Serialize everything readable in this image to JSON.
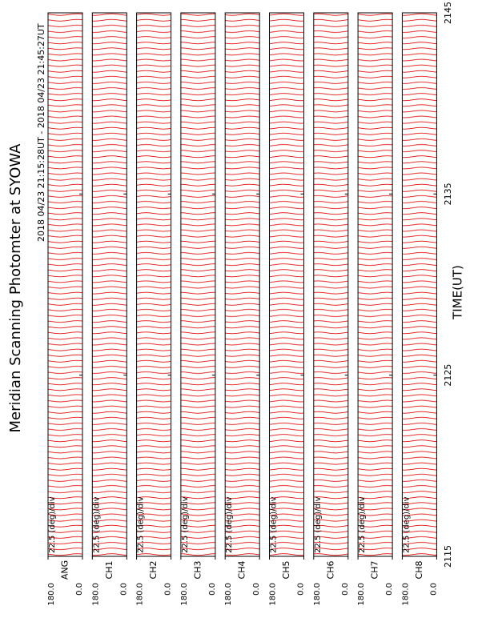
{
  "chart_data": {
    "type": "line",
    "title": "Meridian Scanning Photomter at SYOWA",
    "subtitle": "2018 04/23 21:15:28UT - 2018 04/23 21:45:27UT",
    "x_label": "TIME(UT)",
    "xlim": [
      2115,
      2145
    ],
    "xticks": [
      2115,
      2125,
      2135,
      2145
    ],
    "ylim": [
      0,
      180
    ],
    "yticks": [
      {
        "value": 0,
        "label": "0.0"
      },
      {
        "value": 180,
        "label": "180.0"
      }
    ],
    "color": "#e00000",
    "panels": [
      {
        "name": "ANG",
        "scale": "22.5 (deg)/div"
      },
      {
        "name": "CH1",
        "scale": "22.5 (deg)/div"
      },
      {
        "name": "CH2",
        "scale": "22.5 (deg)/div"
      },
      {
        "name": "CH3",
        "scale": "22.5 (deg)/div"
      },
      {
        "name": "CH4",
        "scale": "22.5 (deg)/div"
      },
      {
        "name": "CH5",
        "scale": "22.5 (deg)/div"
      },
      {
        "name": "CH6",
        "scale": "22.5 (deg)/div"
      },
      {
        "name": "CH7",
        "scale": "22.5 (deg)/div"
      },
      {
        "name": "CH8",
        "scale": "22.5 (deg)/div"
      }
    ]
  }
}
